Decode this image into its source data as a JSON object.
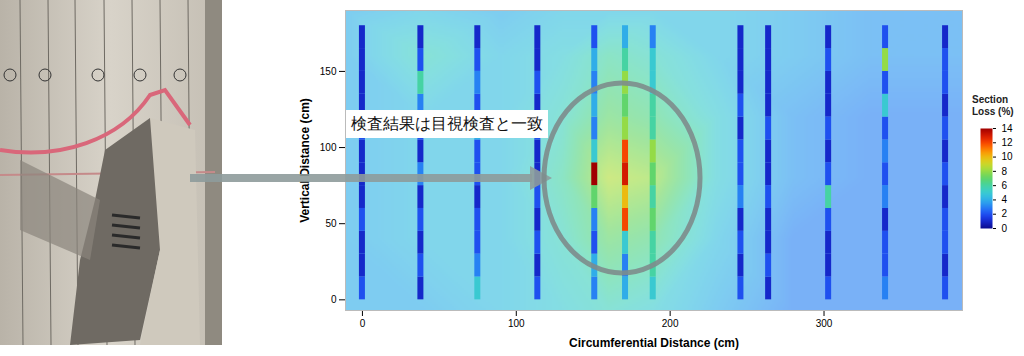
{
  "chart_data": {
    "type": "heatmap",
    "xlabel": "Circumferential Distance (cm)",
    "ylabel": "Vertical Distance (cm)",
    "xlim": [
      -11,
      390
    ],
    "ylim": [
      -7,
      190
    ],
    "xticks": [
      0,
      100,
      200,
      300
    ],
    "yticks": [
      0,
      50,
      100,
      150
    ],
    "grid": false,
    "cells": {
      "x": [
        -11,
        40,
        90,
        130,
        160,
        190,
        230,
        280,
        330,
        390
      ],
      "y": [
        -7,
        40,
        80,
        120,
        160,
        190
      ],
      "values": [
        [
          4,
          4,
          4.5,
          5,
          5.5,
          5,
          4,
          3,
          3,
          3
        ],
        [
          4,
          4.5,
          4.5,
          5.5,
          7,
          6.5,
          4.5,
          3,
          3,
          3
        ],
        [
          4,
          4.5,
          4.5,
          6,
          8.5,
          8,
          5,
          3.5,
          3,
          3
        ],
        [
          4,
          4.5,
          4.5,
          5.5,
          7,
          6.5,
          5,
          3.5,
          3,
          3
        ],
        [
          4,
          5.5,
          4.5,
          5,
          6,
          5.5,
          4.5,
          4,
          3.5,
          3.5
        ],
        [
          4,
          4.5,
          4,
          4.5,
          4.5,
          4.5,
          4.5,
          4,
          3.5,
          3.5
        ]
      ]
    },
    "scan_lines": {
      "x": [
        0,
        38,
        75,
        114,
        151,
        171,
        189,
        246,
        264,
        303,
        340,
        379
      ],
      "y_bins": [
        0,
        15,
        30,
        45,
        60,
        75,
        90,
        105,
        120,
        135,
        150,
        165,
        180
      ],
      "values": [
        [
          2,
          1,
          1,
          2,
          1,
          1,
          1,
          2,
          1,
          1,
          1,
          1
        ],
        [
          1,
          2,
          1,
          2,
          1,
          3,
          1,
          2,
          3,
          6,
          2,
          1
        ],
        [
          5,
          3,
          2,
          2,
          1,
          2,
          2,
          4,
          2,
          3,
          2,
          1
        ],
        [
          2,
          1,
          2,
          1,
          2,
          1,
          1,
          2,
          1,
          2,
          1,
          1
        ],
        [
          3,
          4,
          2,
          3,
          7,
          14,
          5,
          3,
          4,
          3,
          4,
          2
        ],
        [
          4,
          3,
          5,
          12,
          10,
          13,
          12,
          8,
          7,
          8,
          6,
          4
        ],
        [
          5,
          6,
          6,
          7,
          6,
          7,
          8,
          6,
          6,
          5,
          5,
          3
        ],
        [
          2,
          1,
          2,
          1,
          3,
          2,
          2,
          1,
          2,
          1,
          1,
          1
        ],
        [
          1,
          2,
          1,
          1,
          2,
          1,
          1,
          2,
          1,
          1,
          1,
          1
        ],
        [
          2,
          1,
          1,
          2,
          6,
          2,
          1,
          2,
          1,
          1,
          2,
          1
        ],
        [
          3,
          2,
          2,
          1,
          3,
          2,
          3,
          2,
          5,
          2,
          8,
          2
        ],
        [
          2,
          1,
          2,
          2,
          1,
          2,
          1,
          2,
          1,
          2,
          2,
          1
        ]
      ]
    },
    "colorbar": {
      "title": "Section Loss (%)",
      "range": [
        0,
        14
      ],
      "ticks": [
        0,
        2,
        4,
        6,
        8,
        10,
        12,
        14
      ]
    },
    "annotations": [
      "検査結果は目視検査と一致"
    ]
  }
}
